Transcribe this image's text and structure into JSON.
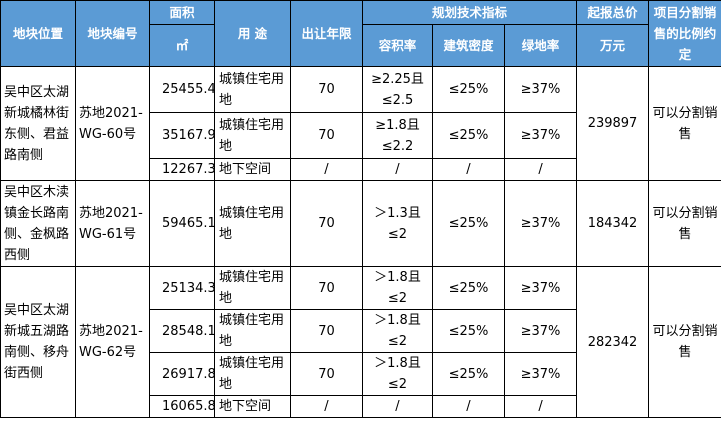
{
  "header": {
    "location": "地块位置",
    "parcel_no": "地块编号",
    "area": "面积",
    "area_unit": "㎡",
    "usage": "用 途",
    "lease_years": "出让年限",
    "planning": "规划技术指标",
    "far": "容积率",
    "building_density": "建筑密度",
    "green_rate": "绿地率",
    "start_price": "起报总价",
    "price_unit": "万元",
    "split_sale": "项目分割销售的比例约定"
  },
  "parcels": [
    {
      "location": "吴中区太湖新城橘林街东侧、君益路南侧",
      "parcel_no": "苏地2021-WG-60号",
      "start_price": "239897",
      "split_sale": "可以分割销售",
      "rows": [
        {
          "area": "25455.4",
          "usage": "城镇住宅用地",
          "years": "70",
          "far": "≥2.25且≤2.5",
          "density": "≤25%",
          "green": "≥37%"
        },
        {
          "area": "35167.9",
          "usage": "城镇住宅用地",
          "years": "70",
          "far": "≥1.8且≤2.2",
          "density": "≤25%",
          "green": "≥37%"
        },
        {
          "area": "12267.3",
          "usage": "地下空间",
          "years": "/",
          "far": "/",
          "density": "/",
          "green": "/"
        }
      ]
    },
    {
      "location": "吴中区木渎镇金长路南侧、金枫路西侧",
      "parcel_no": "苏地2021-WG-61号",
      "start_price": "184342",
      "split_sale": "可以分割销售",
      "rows": [
        {
          "area": "59465.1",
          "usage": "城镇住宅用地",
          "years": "70",
          "far": "＞1.3且≤2",
          "density": "≤25%",
          "green": "≥37%"
        }
      ]
    },
    {
      "location": "吴中区太湖新城五湖路南侧、移舟街西侧",
      "parcel_no": "苏地2021-WG-62号",
      "start_price": "282342",
      "split_sale": "可以分割销售",
      "rows": [
        {
          "area": "25134.3",
          "usage": "城镇住宅用地",
          "years": "70",
          "far": "＞1.8且≤2",
          "density": "≤25%",
          "green": "≥37%"
        },
        {
          "area": "28548.1",
          "usage": "城镇住宅用地",
          "years": "70",
          "far": "＞1.8且≤2",
          "density": "≤25%",
          "green": "≥37%"
        },
        {
          "area": "26917.8",
          "usage": "城镇住宅用地",
          "years": "70",
          "far": "＞1.8且≤2",
          "density": "≤25%",
          "green": "≥37%"
        },
        {
          "area": "16065.8",
          "usage": "地下空间",
          "years": "/",
          "far": "/",
          "density": "/",
          "green": "/"
        }
      ]
    }
  ]
}
